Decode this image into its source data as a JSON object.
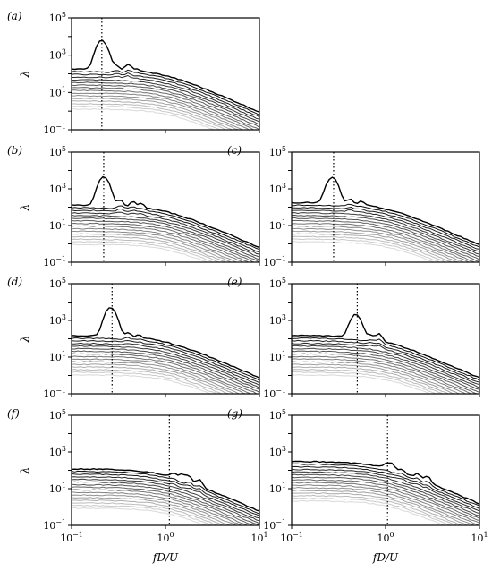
{
  "chart_data": [
    {
      "panel": "(a)",
      "type": "line",
      "xscale": "log",
      "yscale": "log",
      "xlim": [
        0.1,
        10
      ],
      "ylim": [
        0.1,
        100000
      ],
      "xticks": [
        "10^-1",
        "10^0",
        "10^1"
      ],
      "yticks": [
        "10^-1",
        "10^1",
        "10^3",
        "10^5"
      ],
      "ylabel": "λ",
      "xlabel": "",
      "show_xticklabels": false,
      "vline_x": 0.21,
      "peak_freq": 0.21,
      "peak_value": 6000,
      "base_top": 180,
      "bumps": [
        [
          0.3,
          120
        ],
        [
          0.4,
          180
        ],
        [
          0.5,
          40
        ]
      ],
      "n_series": 16,
      "series_color_range": [
        "#000000",
        "#d8d8d8"
      ]
    },
    {
      "panel": "(b)",
      "type": "line",
      "xscale": "log",
      "yscale": "log",
      "xlim": [
        0.1,
        10
      ],
      "ylim": [
        0.1,
        100000
      ],
      "xticks": [
        "10^-1",
        "10^0",
        "10^1"
      ],
      "yticks": [
        "10^-1",
        "10^1",
        "10^3",
        "10^5"
      ],
      "ylabel": "λ",
      "xlabel": "",
      "show_xticklabels": false,
      "vline_x": 0.22,
      "peak_freq": 0.22,
      "peak_value": 4500,
      "base_top": 130,
      "bumps": [
        [
          0.33,
          120
        ],
        [
          0.45,
          90
        ],
        [
          0.55,
          60
        ]
      ],
      "n_series": 16,
      "series_color_range": [
        "#000000",
        "#d8d8d8"
      ]
    },
    {
      "panel": "(c)",
      "type": "line",
      "xscale": "log",
      "yscale": "log",
      "xlim": [
        0.1,
        10
      ],
      "ylim": [
        0.1,
        100000
      ],
      "xticks": [
        "10^-1",
        "10^0",
        "10^1"
      ],
      "yticks": [
        "10^-1",
        "10^1",
        "10^3",
        "10^5"
      ],
      "ylabel": "",
      "xlabel": "",
      "show_xticklabels": false,
      "vline_x": 0.28,
      "peak_freq": 0.27,
      "peak_value": 4000,
      "base_top": 180,
      "bumps": [
        [
          0.42,
          120
        ],
        [
          0.55,
          70
        ]
      ],
      "n_series": 16,
      "series_color_range": [
        "#000000",
        "#d8d8d8"
      ]
    },
    {
      "panel": "(d)",
      "type": "line",
      "xscale": "log",
      "yscale": "log",
      "xlim": [
        0.1,
        10
      ],
      "ylim": [
        0.1,
        100000
      ],
      "xticks": [
        "10^-1",
        "10^0",
        "10^1"
      ],
      "yticks": [
        "10^-1",
        "10^1",
        "10^3",
        "10^5"
      ],
      "ylabel": "λ",
      "xlabel": "",
      "show_xticklabels": false,
      "vline_x": 0.27,
      "peak_freq": 0.26,
      "peak_value": 5000,
      "base_top": 150,
      "bumps": [
        [
          0.4,
          80
        ],
        [
          0.52,
          50
        ]
      ],
      "n_series": 16,
      "series_color_range": [
        "#000000",
        "#d8d8d8"
      ]
    },
    {
      "panel": "(e)",
      "type": "line",
      "xscale": "log",
      "yscale": "log",
      "xlim": [
        0.1,
        10
      ],
      "ylim": [
        0.1,
        100000
      ],
      "xticks": [
        "10^-1",
        "10^0",
        "10^1"
      ],
      "yticks": [
        "10^-1",
        "10^1",
        "10^3",
        "10^5"
      ],
      "ylabel": "",
      "xlabel": "",
      "show_xticklabels": false,
      "vline_x": 0.5,
      "peak_freq": 0.48,
      "peak_value": 2000,
      "base_top": 150,
      "bumps": [
        [
          0.7,
          70
        ],
        [
          0.85,
          120
        ]
      ],
      "n_series": 16,
      "series_color_range": [
        "#000000",
        "#d8d8d8"
      ]
    },
    {
      "panel": "(f)",
      "type": "line",
      "xscale": "log",
      "yscale": "log",
      "xlim": [
        0.1,
        10
      ],
      "ylim": [
        0.1,
        100000
      ],
      "xticks": [
        "10^-1",
        "10^0",
        "10^1"
      ],
      "yticks": [
        "10^-1",
        "10^1",
        "10^3",
        "10^5"
      ],
      "ylabel": "λ",
      "xlabel": "fD/U",
      "show_xticklabels": true,
      "vline_x": 1.1,
      "peak_freq": 1.5,
      "peak_value": 30,
      "base_top": 120,
      "bumps": [
        [
          1.2,
          25
        ],
        [
          1.8,
          22
        ],
        [
          2.3,
          18
        ]
      ],
      "n_series": 16,
      "series_color_range": [
        "#000000",
        "#d8d8d8"
      ]
    },
    {
      "panel": "(g)",
      "type": "line",
      "xscale": "log",
      "yscale": "log",
      "xlim": [
        0.1,
        10
      ],
      "ylim": [
        0.1,
        100000
      ],
      "xticks": [
        "10^-1",
        "10^0",
        "10^1"
      ],
      "yticks": [
        "10^-1",
        "10^1",
        "10^3",
        "10^5"
      ],
      "ylabel": "",
      "xlabel": "fD/U",
      "show_xticklabels": true,
      "vline_x": 1.05,
      "peak_freq": 1.1,
      "peak_value": 150,
      "base_top": 300,
      "bumps": [
        [
          1.5,
          40
        ],
        [
          2.2,
          30
        ],
        [
          2.8,
          25
        ]
      ],
      "n_series": 16,
      "series_color_range": [
        "#000000",
        "#d8d8d8"
      ]
    }
  ]
}
